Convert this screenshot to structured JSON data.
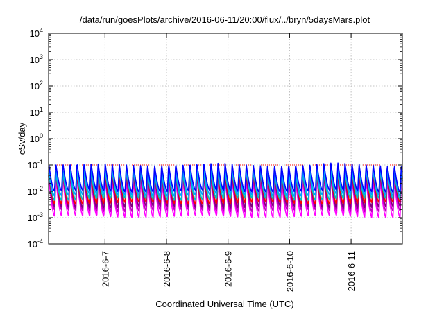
{
  "chart_data": {
    "type": "line",
    "title": "/data/run/goesPlots/archive/2016-06-11/20:00/flux/../bryn/5daysMars.plot",
    "xlabel": "Coordinated Universal Time (UTC)",
    "ylabel": "cSv/day",
    "yscale": "log",
    "ylim": [
      0.0001,
      10000
    ],
    "xlim": [
      "2016-06-06 02:00",
      "2016-06-11 20:00"
    ],
    "x_ticks": [
      "2016-6-7",
      "2016-6-8",
      "2016-6-9",
      "2016-6-10",
      "2016-6-11"
    ],
    "y_ticks": [
      {
        "value": 0.0001,
        "base": "10",
        "exp": "-4"
      },
      {
        "value": 0.001,
        "base": "10",
        "exp": "-3"
      },
      {
        "value": 0.01,
        "base": "10",
        "exp": "-2"
      },
      {
        "value": 0.1,
        "base": "10",
        "exp": "-1"
      },
      {
        "value": 1,
        "base": "10",
        "exp": "0"
      },
      {
        "value": 10,
        "base": "10",
        "exp": "1"
      },
      {
        "value": 100,
        "base": "10",
        "exp": "2"
      },
      {
        "value": 1000,
        "base": "10",
        "exp": "3"
      },
      {
        "value": 10000,
        "base": "10",
        "exp": "4"
      }
    ],
    "grid": true,
    "legend": "none",
    "reference_line": {
      "value": 0.1,
      "color": "#ff0000",
      "style": "dotted"
    },
    "pattern": {
      "period_days": 0.1146,
      "note": "periodic sawtooth: sharp rise then decay each cycle"
    },
    "series": [
      {
        "color": "#ff00ff",
        "peak": 0.03,
        "min": 0.0011
      },
      {
        "color": "#c000c0",
        "peak": 0.04,
        "min": 0.0018
      },
      {
        "color": "#800080",
        "peak": 0.05,
        "min": 0.0025
      },
      {
        "color": "#ff0000",
        "peak": 0.06,
        "min": 0.0035
      },
      {
        "color": "#00c0c0",
        "peak": 0.055,
        "min": 0.005
      },
      {
        "color": "#00a0ff",
        "peak": 0.07,
        "min": 0.007
      },
      {
        "color": "#0000ff",
        "peak": 0.11,
        "min": 0.01
      }
    ]
  }
}
